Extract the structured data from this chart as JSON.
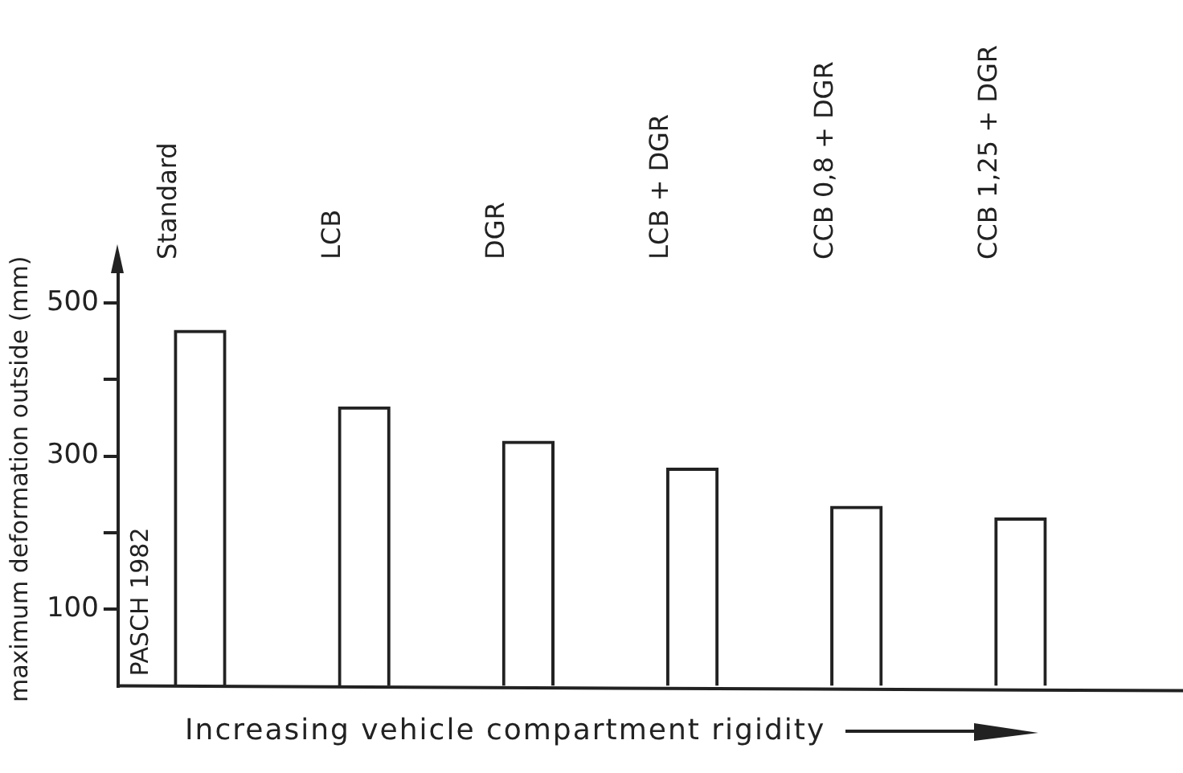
{
  "chart_data": {
    "type": "bar",
    "ylabel": "maximum deformation outside (mm)",
    "xlabel": "Increasing vehicle compartment rigidity",
    "categories": [
      "Standard",
      "LCB",
      "DGR",
      "LCB + DGR",
      "CCB 0,8 + DGR",
      "CCB 1,25 + DGR"
    ],
    "values": [
      465,
      365,
      320,
      285,
      235,
      220
    ],
    "color": "#222222",
    "ylim": [
      0,
      540
    ],
    "yticks": [
      {
        "value": 100,
        "label": "100"
      },
      {
        "value": 200,
        "label": null
      },
      {
        "value": 300,
        "label": "300"
      },
      {
        "value": 400,
        "label": null
      },
      {
        "value": 500,
        "label": "500"
      }
    ],
    "annotations": [
      "PASCH 1982"
    ],
    "grid": false,
    "legend": false
  }
}
